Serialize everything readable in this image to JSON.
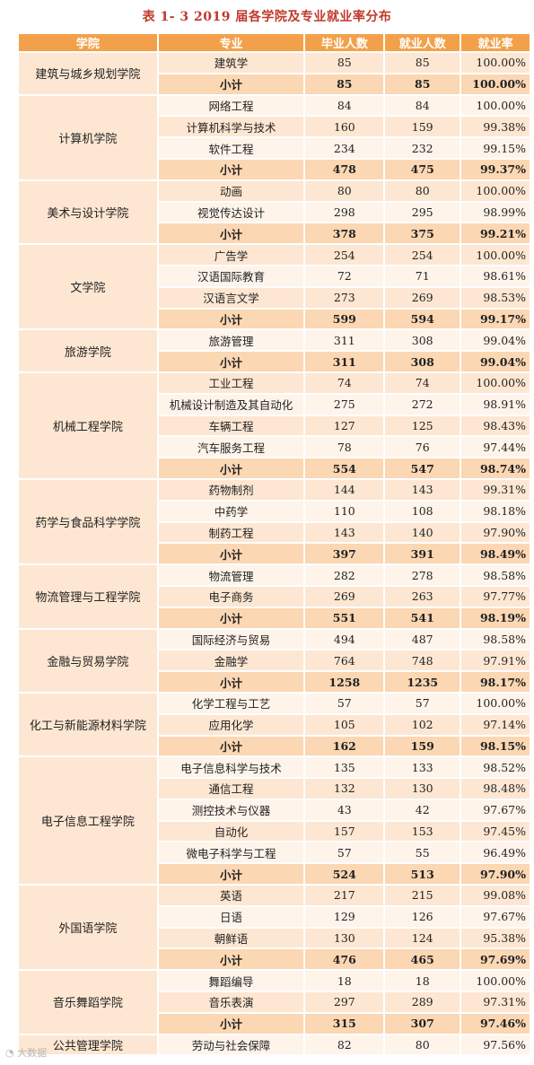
{
  "caption": "表 1- 3    2019 届各学院及专业就业率分布",
  "headers": [
    "学院",
    "专业",
    "毕业人数",
    "就业人数",
    "就业率"
  ],
  "colleges": [
    {
      "name": "建筑与城乡规划学院",
      "rows": [
        {
          "major": "建筑学",
          "grad": "85",
          "emp": "85",
          "rate": "100.00%"
        },
        {
          "major": "小计",
          "grad": "85",
          "emp": "85",
          "rate": "100.00%",
          "subtotal": true
        }
      ]
    },
    {
      "name": "计算机学院",
      "rows": [
        {
          "major": "网络工程",
          "grad": "84",
          "emp": "84",
          "rate": "100.00%"
        },
        {
          "major": "计算机科学与技术",
          "grad": "160",
          "emp": "159",
          "rate": "99.38%"
        },
        {
          "major": "软件工程",
          "grad": "234",
          "emp": "232",
          "rate": "99.15%"
        },
        {
          "major": "小计",
          "grad": "478",
          "emp": "475",
          "rate": "99.37%",
          "subtotal": true
        }
      ]
    },
    {
      "name": "美术与设计学院",
      "rows": [
        {
          "major": "动画",
          "grad": "80",
          "emp": "80",
          "rate": "100.00%"
        },
        {
          "major": "视觉传达设计",
          "grad": "298",
          "emp": "295",
          "rate": "98.99%"
        },
        {
          "major": "小计",
          "grad": "378",
          "emp": "375",
          "rate": "99.21%",
          "subtotal": true
        }
      ]
    },
    {
      "name": "文学院",
      "rows": [
        {
          "major": "广告学",
          "grad": "254",
          "emp": "254",
          "rate": "100.00%"
        },
        {
          "major": "汉语国际教育",
          "grad": "72",
          "emp": "71",
          "rate": "98.61%"
        },
        {
          "major": "汉语言文学",
          "grad": "273",
          "emp": "269",
          "rate": "98.53%"
        },
        {
          "major": "小计",
          "grad": "599",
          "emp": "594",
          "rate": "99.17%",
          "subtotal": true
        }
      ]
    },
    {
      "name": "旅游学院",
      "rows": [
        {
          "major": "旅游管理",
          "grad": "311",
          "emp": "308",
          "rate": "99.04%"
        },
        {
          "major": "小计",
          "grad": "311",
          "emp": "308",
          "rate": "99.04%",
          "subtotal": true
        }
      ]
    },
    {
      "name": "机械工程学院",
      "rows": [
        {
          "major": "工业工程",
          "grad": "74",
          "emp": "74",
          "rate": "100.00%"
        },
        {
          "major": "机械设计制造及其自动化",
          "grad": "275",
          "emp": "272",
          "rate": "98.91%"
        },
        {
          "major": "车辆工程",
          "grad": "127",
          "emp": "125",
          "rate": "98.43%"
        },
        {
          "major": "汽车服务工程",
          "grad": "78",
          "emp": "76",
          "rate": "97.44%"
        },
        {
          "major": "小计",
          "grad": "554",
          "emp": "547",
          "rate": "98.74%",
          "subtotal": true
        }
      ]
    },
    {
      "name": "药学与食品科学学院",
      "rows": [
        {
          "major": "药物制剂",
          "grad": "144",
          "emp": "143",
          "rate": "99.31%"
        },
        {
          "major": "中药学",
          "grad": "110",
          "emp": "108",
          "rate": "98.18%"
        },
        {
          "major": "制药工程",
          "grad": "143",
          "emp": "140",
          "rate": "97.90%"
        },
        {
          "major": "小计",
          "grad": "397",
          "emp": "391",
          "rate": "98.49%",
          "subtotal": true
        }
      ]
    },
    {
      "name": "物流管理与工程学院",
      "rows": [
        {
          "major": "物流管理",
          "grad": "282",
          "emp": "278",
          "rate": "98.58%"
        },
        {
          "major": "电子商务",
          "grad": "269",
          "emp": "263",
          "rate": "97.77%"
        },
        {
          "major": "小计",
          "grad": "551",
          "emp": "541",
          "rate": "98.19%",
          "subtotal": true
        }
      ]
    },
    {
      "name": "金融与贸易学院",
      "rows": [
        {
          "major": "国际经济与贸易",
          "grad": "494",
          "emp": "487",
          "rate": "98.58%"
        },
        {
          "major": "金融学",
          "grad": "764",
          "emp": "748",
          "rate": "97.91%"
        },
        {
          "major": "小计",
          "grad": "1258",
          "emp": "1235",
          "rate": "98.17%",
          "subtotal": true
        }
      ]
    },
    {
      "name": "化工与新能源材料学院",
      "rows": [
        {
          "major": "化学工程与工艺",
          "grad": "57",
          "emp": "57",
          "rate": "100.00%"
        },
        {
          "major": "应用化学",
          "grad": "105",
          "emp": "102",
          "rate": "97.14%"
        },
        {
          "major": "小计",
          "grad": "162",
          "emp": "159",
          "rate": "98.15%",
          "subtotal": true
        }
      ]
    },
    {
      "name": "电子信息工程学院",
      "rows": [
        {
          "major": "电子信息科学与技术",
          "grad": "135",
          "emp": "133",
          "rate": "98.52%"
        },
        {
          "major": "通信工程",
          "grad": "132",
          "emp": "130",
          "rate": "98.48%"
        },
        {
          "major": "测控技术与仪器",
          "grad": "43",
          "emp": "42",
          "rate": "97.67%"
        },
        {
          "major": "自动化",
          "grad": "157",
          "emp": "153",
          "rate": "97.45%"
        },
        {
          "major": "微电子科学与工程",
          "grad": "57",
          "emp": "55",
          "rate": "96.49%"
        },
        {
          "major": "小计",
          "grad": "524",
          "emp": "513",
          "rate": "97.90%",
          "subtotal": true
        }
      ]
    },
    {
      "name": "外国语学院",
      "rows": [
        {
          "major": "英语",
          "grad": "217",
          "emp": "215",
          "rate": "99.08%"
        },
        {
          "major": "日语",
          "grad": "129",
          "emp": "126",
          "rate": "97.67%"
        },
        {
          "major": "朝鲜语",
          "grad": "130",
          "emp": "124",
          "rate": "95.38%"
        },
        {
          "major": "小计",
          "grad": "476",
          "emp": "465",
          "rate": "97.69%",
          "subtotal": true
        }
      ]
    },
    {
      "name": "音乐舞蹈学院",
      "rows": [
        {
          "major": "舞蹈编导",
          "grad": "18",
          "emp": "18",
          "rate": "100.00%"
        },
        {
          "major": "音乐表演",
          "grad": "297",
          "emp": "289",
          "rate": "97.31%"
        },
        {
          "major": "小计",
          "grad": "315",
          "emp": "307",
          "rate": "97.46%",
          "subtotal": true
        }
      ]
    },
    {
      "name": "公共管理学院",
      "rows": [
        {
          "major": "劳动与社会保障",
          "grad": "82",
          "emp": "80",
          "rate": "97.56%"
        }
      ]
    }
  ]
}
